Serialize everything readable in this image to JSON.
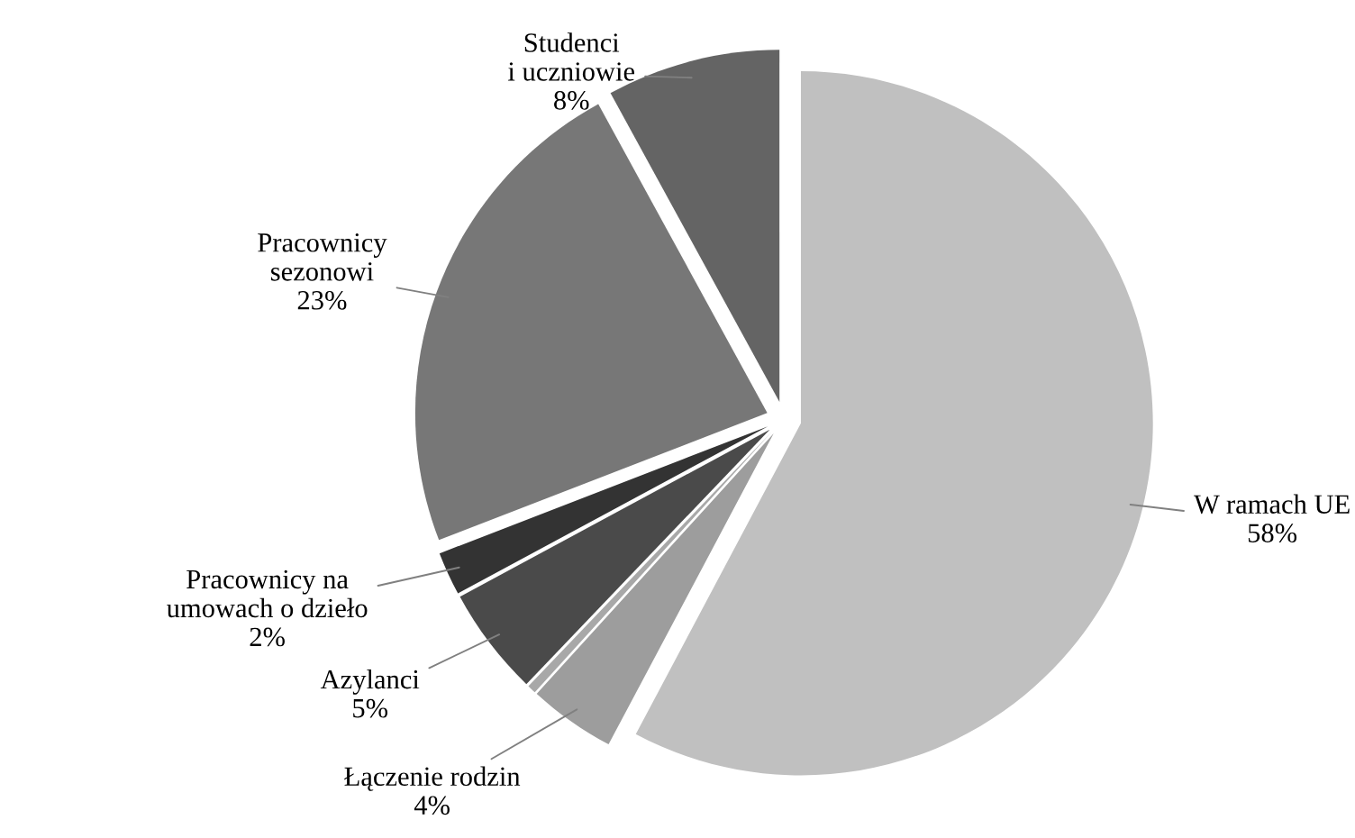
{
  "chart_data": {
    "type": "pie",
    "categories": [
      "W ramach UE\n58%",
      "Łączenie rodzin\n4%",
      null,
      "Azylanci\n5%",
      "Pracownicy na\numowach o dzieło\n2%",
      "Pracownicy\nsezonowi\n23%",
      "Studenci\ni uczniowie\n8%"
    ],
    "values": [
      58,
      4,
      0.4,
      5,
      2,
      23,
      8
    ],
    "colors": [
      "#c0c0c0",
      "#9d9d9d",
      "#a8a8a8",
      "#4a4a4a",
      "#333333",
      "#777777",
      "#646464"
    ]
  }
}
